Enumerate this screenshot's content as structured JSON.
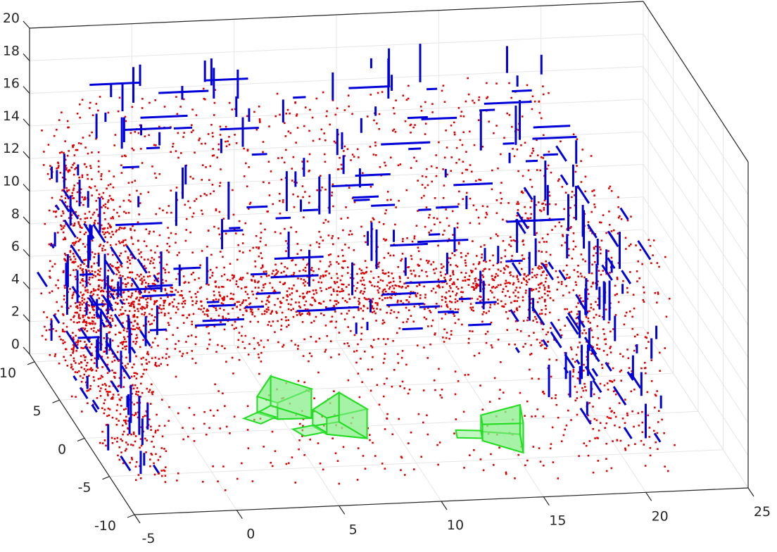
{
  "chart_data": {
    "type": "scatter",
    "projection": "3d",
    "grid": true,
    "x_axis": {
      "ticks": [
        -5,
        0,
        5,
        10,
        15,
        20,
        25
      ],
      "range": [
        -5,
        25
      ]
    },
    "y_axis": {
      "ticks": [
        -10,
        -5,
        0,
        5,
        10
      ],
      "range": [
        -10,
        11
      ]
    },
    "z_axis": {
      "ticks": [
        0,
        2,
        4,
        6,
        8,
        10,
        12,
        14,
        16,
        18,
        20
      ],
      "range": [
        0,
        20
      ]
    },
    "series": [
      {
        "kind": "points",
        "color": "#e00000",
        "clusters": [
          {
            "x": [
              -4.5,
              -2.5
            ],
            "y": [
              -7,
              11
            ],
            "z": [
              0,
              14
            ],
            "count": 900
          },
          {
            "x": [
              -4,
              20
            ],
            "y": [
              8,
              11
            ],
            "z": [
              0,
              16
            ],
            "count": 1300
          },
          {
            "x": [
              -3,
              20
            ],
            "y": [
              9,
              11
            ],
            "z": [
              2,
              5
            ],
            "count": 900
          },
          {
            "x": [
              18,
              22
            ],
            "y": [
              -8,
              10
            ],
            "z": [
              0,
              13
            ],
            "count": 500
          },
          {
            "x": [
              -4,
              22
            ],
            "y": [
              -8,
              10
            ],
            "z": [
              0,
              1
            ],
            "count": 350
          }
        ]
      },
      {
        "kind": "line-segments",
        "color": "#0000d8",
        "clusters": [
          {
            "x": [
              -4.5,
              -2.5
            ],
            "y": [
              -7,
              11
            ],
            "z": [
              0,
              12
            ],
            "count": 90
          },
          {
            "x": [
              -3,
              20
            ],
            "y": [
              9,
              11
            ],
            "z": [
              1,
              17
            ],
            "count": 150
          },
          {
            "x": [
              18,
              22
            ],
            "y": [
              -8,
              10
            ],
            "z": [
              0,
              12
            ],
            "count": 90
          }
        ]
      },
      {
        "kind": "camera-frustums",
        "color": "#22dd22",
        "fill": "#90ee90",
        "poses": [
          {
            "x": 4.0,
            "y": 1.0,
            "z": 0.8,
            "yaw": 40
          },
          {
            "x": 6.0,
            "y": -1.0,
            "z": 0.8,
            "yaw": 20
          },
          {
            "x": 13.5,
            "y": -2.5,
            "z": 0.8,
            "yaw": -10
          }
        ]
      }
    ]
  }
}
